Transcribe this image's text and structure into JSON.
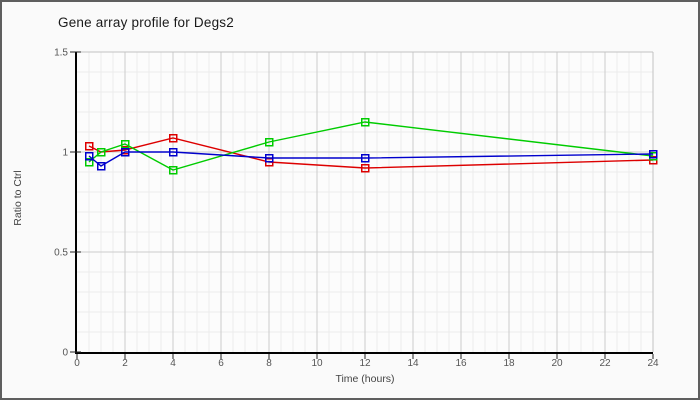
{
  "chart_data": {
    "type": "line",
    "title": "Gene array profile for Degs2",
    "xlabel": "Time (hours)",
    "ylabel": "Ratio to Ctrl",
    "x": [
      0.5,
      1,
      2,
      4,
      8,
      12,
      24
    ],
    "series": [
      {
        "name": "red-series",
        "color": "#dd0000",
        "values": [
          1.03,
          1.0,
          1.01,
          1.07,
          0.95,
          0.92,
          0.96
        ]
      },
      {
        "name": "green-series",
        "color": "#00cc00",
        "values": [
          0.95,
          1.0,
          1.04,
          0.91,
          1.05,
          1.15,
          0.98
        ]
      },
      {
        "name": "blue-series",
        "color": "#0000cc",
        "values": [
          0.98,
          0.93,
          1.0,
          1.0,
          0.97,
          0.97,
          0.99
        ]
      }
    ],
    "xlim": [
      0,
      24
    ],
    "ylim": [
      0,
      1.5
    ],
    "xticks": [
      0,
      2,
      4,
      6,
      8,
      10,
      12,
      14,
      16,
      18,
      20,
      22,
      24
    ],
    "xtick_labels": [
      "0",
      "2",
      "4",
      "6",
      "8",
      "10",
      "12",
      "14",
      "16",
      "18",
      "20",
      "22",
      "24"
    ],
    "yticks": [
      0,
      0.5,
      1,
      1.5
    ],
    "ytick_labels": [
      "0",
      "0.5",
      "1",
      "1.5"
    ],
    "x_minor_step": 0.5,
    "y_minor_step": 0.1,
    "grid": true,
    "legend": "none",
    "marker": "open-square"
  }
}
